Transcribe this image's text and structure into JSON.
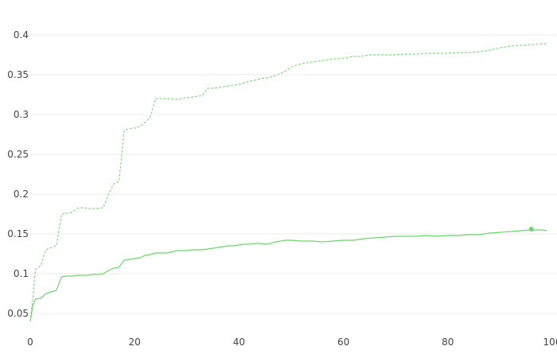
{
  "chart_data": {
    "type": "line",
    "title": "",
    "xlabel": "",
    "ylabel": "",
    "xlim": [
      0,
      100
    ],
    "ylim": [
      0.03,
      0.41
    ],
    "grid": true,
    "x_ticks": [
      {
        "value": 0,
        "label": "0"
      },
      {
        "value": 20,
        "label": "20"
      },
      {
        "value": 40,
        "label": "40"
      },
      {
        "value": 60,
        "label": "60"
      },
      {
        "value": 80,
        "label": "80"
      },
      {
        "value": 100,
        "label": "100"
      }
    ],
    "y_ticks": [
      {
        "value": 0.05,
        "label": "0.05"
      },
      {
        "value": 0.1,
        "label": "0.1"
      },
      {
        "value": 0.15,
        "label": "0.15"
      },
      {
        "value": 0.2,
        "label": "0.2"
      },
      {
        "value": 0.25,
        "label": "0.25"
      },
      {
        "value": 0.3,
        "label": "0.3"
      },
      {
        "value": 0.35,
        "label": "0.35"
      },
      {
        "value": 0.4,
        "label": "0.4"
      }
    ],
    "series": [
      {
        "style": "dashed",
        "color": "#7ee07e",
        "points": [
          [
            0,
            0.04
          ],
          [
            0.5,
            0.07
          ],
          [
            1,
            0.105
          ],
          [
            2,
            0.11
          ],
          [
            3,
            0.13
          ],
          [
            4,
            0.133
          ],
          [
            5,
            0.135
          ],
          [
            6,
            0.175
          ],
          [
            7,
            0.176
          ],
          [
            8,
            0.177
          ],
          [
            9,
            0.182
          ],
          [
            10,
            0.183
          ],
          [
            11,
            0.182
          ],
          [
            12,
            0.182
          ],
          [
            13,
            0.182
          ],
          [
            14,
            0.183
          ],
          [
            15,
            0.2
          ],
          [
            16,
            0.213
          ],
          [
            17,
            0.216
          ],
          [
            18,
            0.28
          ],
          [
            19,
            0.282
          ],
          [
            20,
            0.283
          ],
          [
            21,
            0.285
          ],
          [
            22,
            0.29
          ],
          [
            23,
            0.297
          ],
          [
            24,
            0.32
          ],
          [
            25,
            0.32
          ],
          [
            26,
            0.32
          ],
          [
            27,
            0.32
          ],
          [
            28,
            0.319
          ],
          [
            29,
            0.32
          ],
          [
            30,
            0.321
          ],
          [
            31,
            0.322
          ],
          [
            32,
            0.323
          ],
          [
            33,
            0.324
          ],
          [
            34,
            0.333
          ],
          [
            35,
            0.333
          ],
          [
            36,
            0.334
          ],
          [
            37,
            0.335
          ],
          [
            38,
            0.336
          ],
          [
            39,
            0.337
          ],
          [
            40,
            0.338
          ],
          [
            41,
            0.34
          ],
          [
            42,
            0.342
          ],
          [
            43,
            0.343
          ],
          [
            44,
            0.345
          ],
          [
            45,
            0.346
          ],
          [
            46,
            0.347
          ],
          [
            47,
            0.349
          ],
          [
            48,
            0.352
          ],
          [
            49,
            0.355
          ],
          [
            50,
            0.36
          ],
          [
            51,
            0.362
          ],
          [
            52,
            0.364
          ],
          [
            53,
            0.365
          ],
          [
            54,
            0.366
          ],
          [
            55,
            0.367
          ],
          [
            56,
            0.368
          ],
          [
            57,
            0.369
          ],
          [
            58,
            0.37
          ],
          [
            59,
            0.37
          ],
          [
            60,
            0.371
          ],
          [
            61,
            0.372
          ],
          [
            62,
            0.373
          ],
          [
            63,
            0.373
          ],
          [
            64,
            0.374
          ],
          [
            65,
            0.375
          ],
          [
            66,
            0.375
          ],
          [
            67,
            0.375
          ],
          [
            68,
            0.375
          ],
          [
            69,
            0.375
          ],
          [
            70,
            0.375
          ],
          [
            72,
            0.376
          ],
          [
            74,
            0.376
          ],
          [
            76,
            0.377
          ],
          [
            78,
            0.377
          ],
          [
            80,
            0.377
          ],
          [
            82,
            0.378
          ],
          [
            84,
            0.378
          ],
          [
            86,
            0.379
          ],
          [
            88,
            0.381
          ],
          [
            90,
            0.384
          ],
          [
            92,
            0.386
          ],
          [
            94,
            0.387
          ],
          [
            96,
            0.388
          ],
          [
            98,
            0.389
          ],
          [
            99,
            0.389
          ]
        ]
      },
      {
        "style": "solid",
        "color": "#6ad86a",
        "points": [
          [
            0,
            0.04
          ],
          [
            0.5,
            0.06
          ],
          [
            1,
            0.068
          ],
          [
            2,
            0.069
          ],
          [
            3,
            0.075
          ],
          [
            4,
            0.077
          ],
          [
            5,
            0.079
          ],
          [
            6,
            0.096
          ],
          [
            7,
            0.097
          ],
          [
            8,
            0.097
          ],
          [
            9,
            0.098
          ],
          [
            10,
            0.098
          ],
          [
            11,
            0.098
          ],
          [
            12,
            0.099
          ],
          [
            13,
            0.099
          ],
          [
            14,
            0.1
          ],
          [
            15,
            0.104
          ],
          [
            16,
            0.107
          ],
          [
            17,
            0.108
          ],
          [
            18,
            0.117
          ],
          [
            19,
            0.118
          ],
          [
            20,
            0.119
          ],
          [
            21,
            0.12
          ],
          [
            22,
            0.123
          ],
          [
            23,
            0.124
          ],
          [
            24,
            0.126
          ],
          [
            25,
            0.126
          ],
          [
            26,
            0.126
          ],
          [
            27,
            0.127
          ],
          [
            28,
            0.129
          ],
          [
            29,
            0.129
          ],
          [
            30,
            0.129
          ],
          [
            31,
            0.13
          ],
          [
            32,
            0.13
          ],
          [
            33,
            0.13
          ],
          [
            34,
            0.131
          ],
          [
            35,
            0.132
          ],
          [
            36,
            0.133
          ],
          [
            37,
            0.134
          ],
          [
            38,
            0.135
          ],
          [
            39,
            0.135
          ],
          [
            40,
            0.136
          ],
          [
            41,
            0.137
          ],
          [
            42,
            0.137
          ],
          [
            43,
            0.138
          ],
          [
            44,
            0.138
          ],
          [
            45,
            0.137
          ],
          [
            46,
            0.138
          ],
          [
            47,
            0.14
          ],
          [
            48,
            0.141
          ],
          [
            49,
            0.142
          ],
          [
            50,
            0.142
          ],
          [
            52,
            0.141
          ],
          [
            54,
            0.141
          ],
          [
            56,
            0.14
          ],
          [
            58,
            0.141
          ],
          [
            60,
            0.142
          ],
          [
            62,
            0.142
          ],
          [
            64,
            0.144
          ],
          [
            66,
            0.145
          ],
          [
            68,
            0.146
          ],
          [
            70,
            0.147
          ],
          [
            72,
            0.147
          ],
          [
            74,
            0.147
          ],
          [
            76,
            0.148
          ],
          [
            78,
            0.147
          ],
          [
            80,
            0.148
          ],
          [
            82,
            0.148
          ],
          [
            84,
            0.149
          ],
          [
            86,
            0.149
          ],
          [
            88,
            0.151
          ],
          [
            90,
            0.152
          ],
          [
            92,
            0.153
          ],
          [
            94,
            0.154
          ],
          [
            96,
            0.155
          ],
          [
            98,
            0.155
          ],
          [
            99,
            0.154
          ]
        ],
        "marker": [
          96,
          0.156
        ]
      }
    ]
  }
}
